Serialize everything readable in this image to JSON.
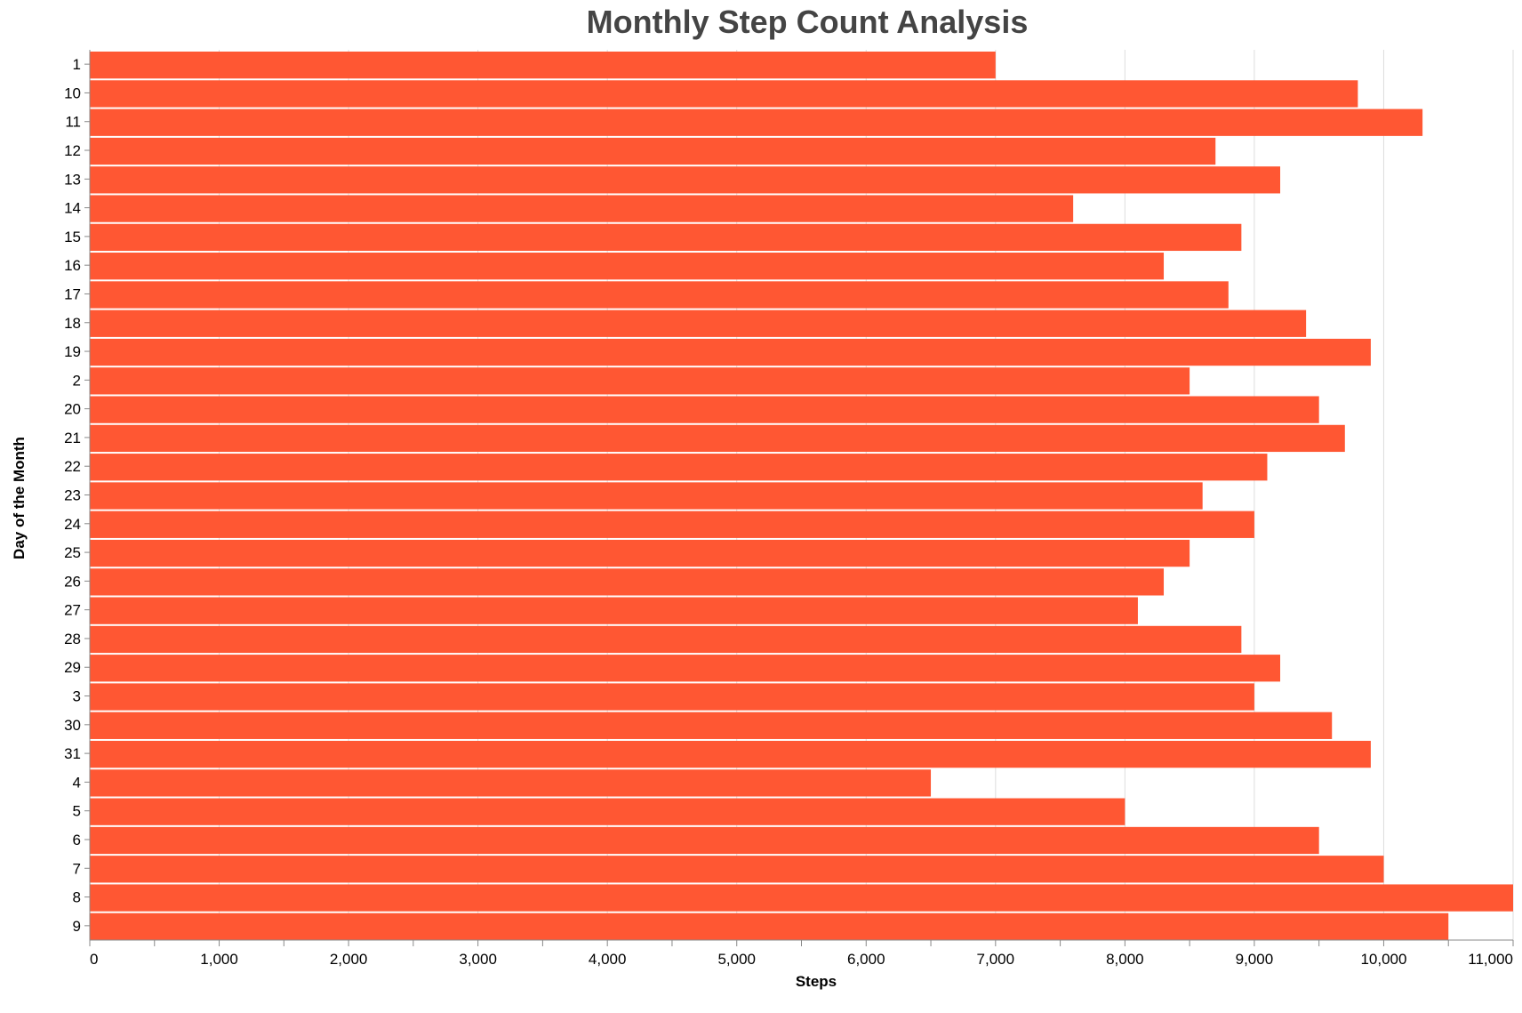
{
  "chart_data": {
    "type": "bar",
    "orientation": "horizontal",
    "title": "Monthly Step Count Analysis",
    "xlabel": "Steps",
    "ylabel": "Day of the Month",
    "xlim": [
      0,
      11000
    ],
    "x_ticks": [
      0,
      1000,
      2000,
      3000,
      4000,
      5000,
      6000,
      7000,
      8000,
      9000,
      10000,
      11000
    ],
    "x_tick_labels": [
      "0",
      "1,000",
      "2,000",
      "3,000",
      "4,000",
      "5,000",
      "6,000",
      "7,000",
      "8,000",
      "9,000",
      "10,000",
      "11,000"
    ],
    "grid": true,
    "bar_color": "#FF5733",
    "categories": [
      "1",
      "10",
      "11",
      "12",
      "13",
      "14",
      "15",
      "16",
      "17",
      "18",
      "19",
      "2",
      "20",
      "21",
      "22",
      "23",
      "24",
      "25",
      "26",
      "27",
      "28",
      "29",
      "3",
      "30",
      "31",
      "4",
      "5",
      "6",
      "7",
      "8",
      "9"
    ],
    "values": [
      7000,
      9800,
      10300,
      8700,
      9200,
      7600,
      8900,
      8300,
      8800,
      9400,
      9900,
      8500,
      9500,
      9700,
      9100,
      8600,
      9000,
      8500,
      8300,
      8100,
      8900,
      9200,
      9000,
      9600,
      9900,
      6500,
      8000,
      9500,
      10000,
      11000,
      10500
    ]
  }
}
